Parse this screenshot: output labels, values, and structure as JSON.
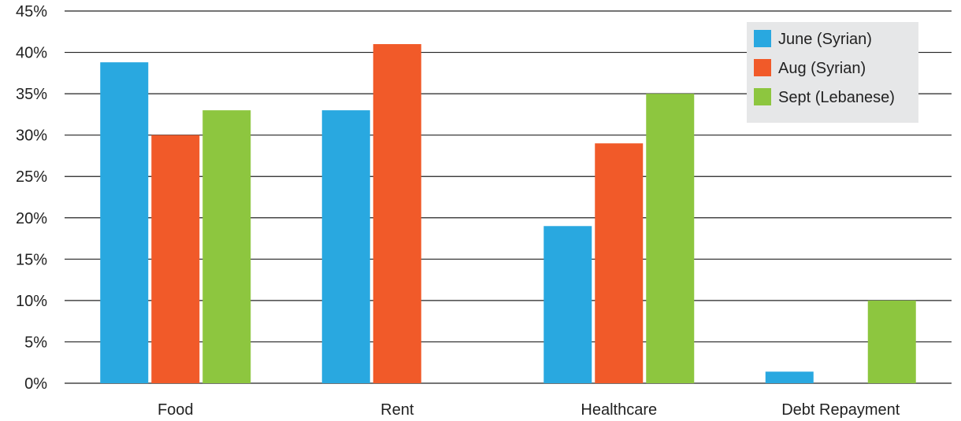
{
  "chart_data": {
    "type": "bar",
    "categories": [
      "Food",
      "Rent",
      "Healthcare",
      "Debt Repayment"
    ],
    "series": [
      {
        "name": "June (Syrian)",
        "color": "#29a8e0",
        "values": [
          38.8,
          33,
          19,
          1.4
        ]
      },
      {
        "name": "Aug (Syrian)",
        "color": "#f15a29",
        "values": [
          30,
          41,
          29,
          null
        ]
      },
      {
        "name": "Sept (Lebanese)",
        "color": "#8dc63f",
        "values": [
          33,
          null,
          35,
          10
        ]
      }
    ],
    "ylim": [
      0,
      45
    ],
    "yticks": [
      0,
      5,
      10,
      15,
      20,
      25,
      30,
      35,
      40,
      45
    ],
    "ytick_labels": [
      "0%",
      "5%",
      "10%",
      "15%",
      "20%",
      "25%",
      "30%",
      "35%",
      "40%",
      "45%"
    ],
    "grid": true,
    "legend_position": "top-right",
    "legend_background": "#e6e7e8",
    "title": "",
    "xlabel": "",
    "ylabel": ""
  }
}
